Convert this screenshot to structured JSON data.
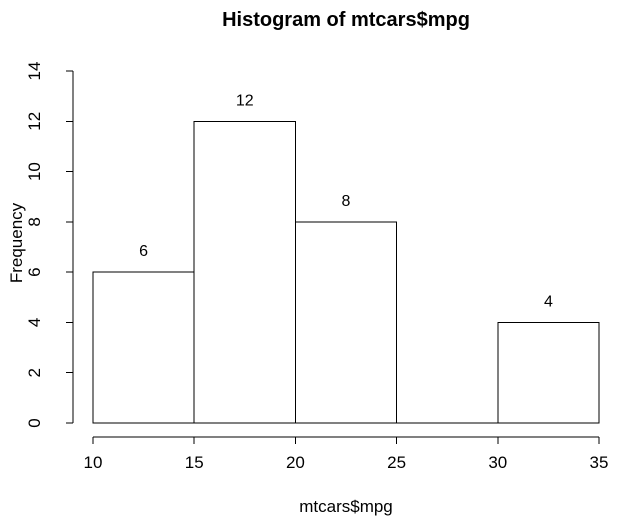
{
  "chart_data": {
    "type": "bar",
    "subtype": "histogram",
    "title": "Histogram of mtcars$mpg",
    "xlabel": "mtcars$mpg",
    "ylabel": "Frequency",
    "breaks": [
      10,
      15,
      20,
      25,
      30,
      35
    ],
    "counts": [
      6,
      12,
      8,
      0,
      4
    ],
    "bar_labels": [
      "6",
      "12",
      "8",
      null,
      "4"
    ],
    "x_ticks": [
      10,
      15,
      20,
      25,
      30,
      35
    ],
    "y_ticks": [
      0,
      2,
      4,
      6,
      8,
      10,
      12,
      14
    ],
    "xlim": [
      10,
      35
    ],
    "ylim": [
      0,
      14
    ],
    "grid": false,
    "legend": null,
    "bar_fill": "#ffffff",
    "bar_stroke": "#000000",
    "axis_color": "#000000",
    "text_color": "#000000",
    "background": "#ffffff"
  }
}
